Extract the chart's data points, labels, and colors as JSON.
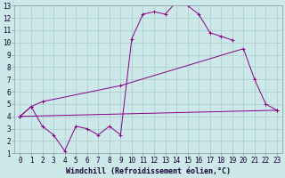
{
  "xlabel": "Windchill (Refroidissement éolien,°C)",
  "background_color": "#cce8e8",
  "grid_color": "#aacccc",
  "line_color": "#880088",
  "xlim": [
    -0.5,
    23.5
  ],
  "ylim": [
    1,
    13
  ],
  "xticks": [
    0,
    1,
    2,
    3,
    4,
    5,
    6,
    7,
    8,
    9,
    10,
    11,
    12,
    13,
    14,
    15,
    16,
    17,
    18,
    19,
    20,
    21,
    22,
    23
  ],
  "yticks": [
    1,
    2,
    3,
    4,
    5,
    6,
    7,
    8,
    9,
    10,
    11,
    12,
    13
  ],
  "curve1_x": [
    0,
    1,
    2,
    3,
    4,
    5,
    6,
    7,
    8,
    9,
    10,
    11,
    12,
    13,
    14,
    15,
    16,
    17,
    18,
    19
  ],
  "curve1_y": [
    4.0,
    4.8,
    3.2,
    2.5,
    1.2,
    3.2,
    3.0,
    2.5,
    3.2,
    2.5,
    10.3,
    12.3,
    12.5,
    12.3,
    13.3,
    13.0,
    12.3,
    10.8,
    10.5,
    10.2
  ],
  "curve2_x": [
    0,
    1,
    2,
    9,
    20,
    21,
    22,
    23
  ],
  "curve2_y": [
    4.0,
    4.8,
    5.2,
    6.5,
    9.5,
    7.0,
    5.0,
    4.5
  ],
  "curve3_x": [
    0,
    23
  ],
  "curve3_y": [
    4.0,
    4.5
  ],
  "figsize": [
    3.2,
    2.0
  ],
  "dpi": 100,
  "tick_fontsize": 5.5,
  "xlabel_fontsize": 6.0
}
